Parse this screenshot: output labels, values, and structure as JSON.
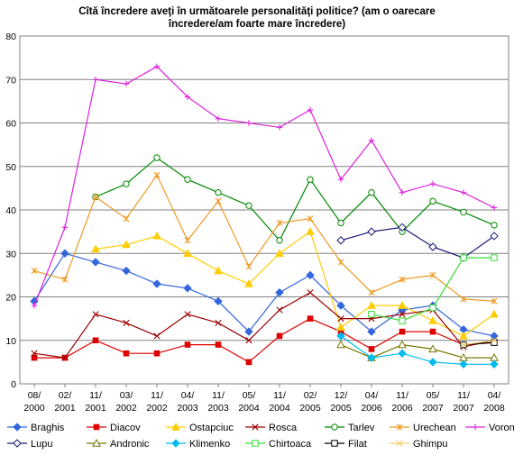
{
  "chart_data": {
    "type": "line",
    "title_lines": [
      "Cîtă încredere aveţi în următoarele personalităţi politice? (am o oarecare",
      "încredere/am foarte mare încredere)"
    ],
    "categories": [
      "08/\n2000",
      "02/\n2001",
      "11/\n2001",
      "03/\n2002",
      "11/\n2002",
      "04/\n2003",
      "11/\n2003",
      "05/\n2004",
      "11/\n2004",
      "02/\n2005",
      "12/\n2005",
      "04/\n2006",
      "11/\n2006",
      "05/\n2007",
      "11/\n2007",
      "04/\n2008"
    ],
    "x_ticks": [
      [
        "08/",
        "2000"
      ],
      [
        "02/",
        "2001"
      ],
      [
        "11/",
        "2001"
      ],
      [
        "03/",
        "2002"
      ],
      [
        "11/",
        "2002"
      ],
      [
        "04/",
        "2003"
      ],
      [
        "11/",
        "2003"
      ],
      [
        "05/",
        "2004"
      ],
      [
        "11/",
        "2004"
      ],
      [
        "02/",
        "2005"
      ],
      [
        "12/",
        "2005"
      ],
      [
        "04/",
        "2006"
      ],
      [
        "11/",
        "2006"
      ],
      [
        "05/",
        "2007"
      ],
      [
        "11/",
        "2007"
      ],
      [
        "04/",
        "2008"
      ]
    ],
    "ylim": [
      0,
      80
    ],
    "yticks": [
      0,
      10,
      20,
      30,
      40,
      50,
      60,
      70,
      80
    ],
    "grid": true,
    "legend_position": "bottom",
    "series": [
      {
        "name": "Braghis",
        "color": "#3366dd",
        "marker": "diamond",
        "values": [
          19,
          30,
          28,
          26,
          23,
          22,
          19,
          12,
          21,
          25,
          18,
          12,
          17,
          18,
          12.5,
          11
        ]
      },
      {
        "name": "Diacov",
        "color": "#dd0000",
        "marker": "square",
        "values": [
          6,
          6,
          10,
          7,
          7,
          9,
          9,
          5,
          11,
          15,
          12,
          8,
          12,
          12,
          9,
          9.5
        ]
      },
      {
        "name": "Ostapciuc",
        "color": "#ffcc00",
        "marker": "triangle",
        "values": [
          null,
          null,
          31,
          32,
          34,
          30,
          26,
          23,
          30,
          35,
          13,
          18,
          18,
          14.5,
          11,
          16
        ]
      },
      {
        "name": "Rosca",
        "color": "#990000",
        "marker": "x",
        "values": [
          7,
          6,
          16,
          14,
          11,
          16,
          14,
          10,
          17,
          21,
          15,
          15,
          16,
          17,
          8.5,
          10
        ]
      },
      {
        "name": "Tarlev",
        "color": "#008800",
        "marker": "circle",
        "values": [
          null,
          null,
          43,
          46,
          52,
          47,
          44,
          41,
          33,
          47,
          37,
          44,
          35,
          42,
          39.5,
          36.5
        ]
      },
      {
        "name": "Urechean",
        "color": "#ee9922",
        "marker": "star",
        "values": [
          26,
          24,
          43,
          38,
          48,
          33,
          42,
          27,
          37,
          38,
          28,
          21,
          24,
          25,
          19.5,
          19
        ]
      },
      {
        "name": "Voronin",
        "color": "#dd22dd",
        "marker": "plus",
        "values": [
          18,
          36,
          70,
          69,
          73,
          66,
          61,
          60,
          59,
          63,
          47,
          56,
          44,
          46,
          44,
          40.5
        ]
      },
      {
        "name": "Lupu",
        "color": "#1a1a7a",
        "marker": "diamond-open",
        "values": [
          null,
          null,
          null,
          null,
          null,
          null,
          null,
          null,
          null,
          null,
          33,
          35,
          36,
          31.5,
          29,
          34
        ]
      },
      {
        "name": "Andronic",
        "color": "#777700",
        "marker": "triangle-open",
        "values": [
          null,
          null,
          null,
          null,
          null,
          null,
          null,
          null,
          null,
          null,
          9,
          6,
          9,
          8,
          6,
          6
        ]
      },
      {
        "name": "Klimenko",
        "color": "#00bbee",
        "marker": "diamond",
        "values": [
          null,
          null,
          null,
          null,
          null,
          null,
          null,
          null,
          null,
          null,
          11,
          6,
          7,
          5,
          4.5,
          4.5
        ]
      },
      {
        "name": "Chirtoaca",
        "color": "#33dd33",
        "marker": "square-open",
        "values": [
          null,
          null,
          null,
          null,
          null,
          null,
          null,
          null,
          null,
          null,
          null,
          16,
          14.5,
          17.5,
          29,
          29
        ]
      },
      {
        "name": "Filat",
        "color": "#000000",
        "marker": "square-open",
        "values": [
          null,
          null,
          null,
          null,
          null,
          null,
          null,
          null,
          null,
          null,
          null,
          null,
          null,
          null,
          9,
          9.5
        ]
      },
      {
        "name": "Ghimpu",
        "color": "#f0d070",
        "marker": "x",
        "values": [
          null,
          null,
          null,
          null,
          null,
          null,
          null,
          null,
          null,
          null,
          null,
          null,
          null,
          null,
          9,
          10
        ]
      }
    ]
  }
}
